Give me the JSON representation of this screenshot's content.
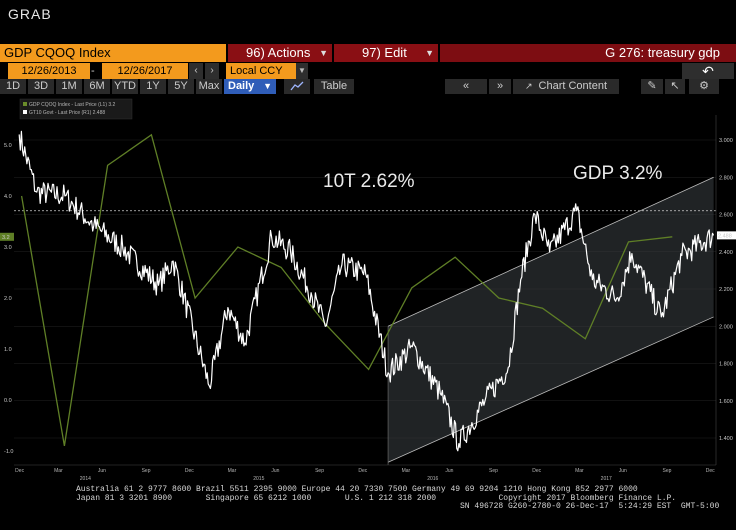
{
  "app": {
    "title": "GRAB"
  },
  "toolbar": {
    "ticker": "GDP CQOQ Index",
    "actions_label": "96) Actions",
    "edit_label": "97) Edit",
    "function_label": "G 276: treasury gdp",
    "start_date": "12/26/2013",
    "end_date": "12/26/2017",
    "currency": "Local CCY",
    "periods": [
      "1D",
      "3D",
      "1M",
      "6M",
      "YTD",
      "1Y",
      "5Y",
      "Max"
    ],
    "frequency": "Daily",
    "table_label": "Table",
    "chart_content_label": "Chart Content"
  },
  "legend": {
    "items": [
      {
        "label": "GDP CQOQ Index - Last Price (L1)  3.2",
        "color": "#6a8c2a"
      },
      {
        "label": "GT10 Govt - Last Price (R1)        2.488",
        "color": "#ffffff"
      }
    ]
  },
  "annotations": {
    "left": "10T 2.62%",
    "right": "GDP 3.2%"
  },
  "chart_data": [
    {
      "type": "line",
      "title": "",
      "series": [
        {
          "name": "GDP CQOQ Index - Last Price (L1)",
          "axis": "left",
          "x": [
            "2013-12-31",
            "2014-03-31",
            "2014-06-30",
            "2014-09-30",
            "2014-12-31",
            "2015-03-31",
            "2015-06-30",
            "2015-09-30",
            "2015-12-31",
            "2016-03-31",
            "2016-06-30",
            "2016-09-30",
            "2016-12-31",
            "2017-03-31",
            "2017-06-30",
            "2017-09-30"
          ],
          "values": [
            4.0,
            -0.9,
            4.6,
            5.2,
            2.0,
            3.0,
            2.6,
            1.5,
            0.6,
            2.2,
            2.8,
            2.0,
            1.8,
            1.2,
            3.1,
            3.2
          ]
        },
        {
          "name": "GT10 Govt - Last Price (R1)",
          "axis": "right",
          "x": [
            "2013-12-26",
            "2014-02-01",
            "2014-04-01",
            "2014-06-01",
            "2014-08-01",
            "2014-10-15",
            "2014-11-15",
            "2015-01-30",
            "2015-03-10",
            "2015-04-15",
            "2015-06-10",
            "2015-07-20",
            "2015-09-01",
            "2015-10-01",
            "2015-11-05",
            "2015-12-25",
            "2016-02-10",
            "2016-04-01",
            "2016-06-01",
            "2016-07-08",
            "2016-09-01",
            "2016-10-20",
            "2016-11-15",
            "2016-12-15",
            "2017-01-15",
            "2017-03-13",
            "2017-04-15",
            "2017-06-05",
            "2017-07-07",
            "2017-09-07",
            "2017-10-20",
            "2017-12-26"
          ],
          "values": [
            3.03,
            2.72,
            2.7,
            2.54,
            2.42,
            2.22,
            2.35,
            1.68,
            2.1,
            1.91,
            2.48,
            2.4,
            2.18,
            2.0,
            2.33,
            2.28,
            1.75,
            1.89,
            1.63,
            1.37,
            1.6,
            1.78,
            2.25,
            2.6,
            2.4,
            2.62,
            2.25,
            2.15,
            2.39,
            2.05,
            2.38,
            2.488
          ]
        }
      ],
      "left_axis": {
        "ticks": [
          -1.0,
          0.0,
          1.0,
          2.0,
          3.0,
          4.0,
          5.0
        ],
        "current_value": "3.2"
      },
      "right_axis": {
        "ticks": [
          "1.400",
          "1.600",
          "1.800",
          "2.000",
          "2.200",
          "2.400",
          "2.600",
          "2.800",
          "3.000"
        ],
        "current_value": "2.488"
      },
      "x_tick_labels": [
        "Dec",
        "Mar",
        "Jun",
        "Sep",
        "Dec",
        "Mar",
        "Jun",
        "Sep",
        "Dec",
        "Mar",
        "Jun",
        "Sep",
        "Dec",
        "Mar",
        "Jun",
        "Sep",
        "Dec"
      ],
      "x_year_labels": [
        "2014",
        "2015",
        "2016",
        "2017"
      ],
      "reference_line": {
        "axis": "right",
        "value": 2.62,
        "style": "dashed"
      },
      "trend_channel": {
        "upper": [
          [
            "2016-02-10",
            2.0
          ],
          [
            "2017-12-26",
            2.8
          ]
        ],
        "lower": [
          [
            "2016-02-10",
            1.27
          ],
          [
            "2017-12-26",
            2.05
          ]
        ]
      },
      "grid": true,
      "legend_position": "top-left",
      "colors": {
        "gdp": "#5f7f26",
        "gt10": "#ffffff"
      }
    }
  ],
  "footer": {
    "line1": "Australia 61 2 9777 8600 Brazil 5511 2395 9000 Europe 44 20 7330 7500 Germany 49 69 9204 1210 Hong Kong 852 2977 6000",
    "line2": "Japan 81 3 3201 8900       Singapore 65 6212 1000       U.S. 1 212 318 2000             Copyright 2017 Bloomberg Finance L.P.",
    "line3": "SN 496728 G260-2780-0 26-Dec-17  5:24:29 EST  GMT-5:00"
  }
}
